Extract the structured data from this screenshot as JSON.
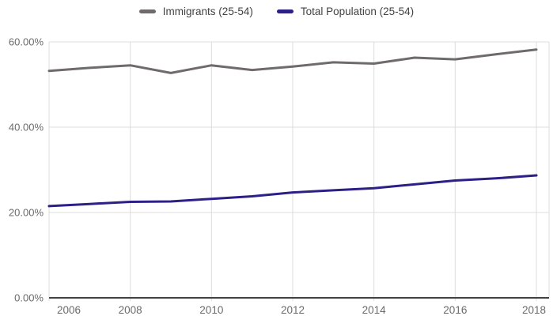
{
  "legend": {
    "items": [
      {
        "label": "Immigrants (25-54)"
      },
      {
        "label": "Total Population (25-54)"
      }
    ]
  },
  "chart_data": {
    "type": "line",
    "title": "",
    "xlabel": "",
    "ylabel": "",
    "x": [
      2006,
      2007,
      2008,
      2009,
      2010,
      2011,
      2012,
      2013,
      2014,
      2015,
      2016,
      2017,
      2018
    ],
    "series": [
      {
        "name": "Immigrants (25-54)",
        "color": "#6f6b6b",
        "values": [
          53.2,
          53.9,
          54.5,
          52.7,
          54.5,
          53.4,
          54.2,
          55.2,
          54.9,
          56.3,
          55.9,
          57.1,
          58.2
        ]
      },
      {
        "name": "Total Population (25-54)",
        "color": "#2c2086",
        "values": [
          21.5,
          22.0,
          22.5,
          22.6,
          23.2,
          23.8,
          24.7,
          25.2,
          25.7,
          26.6,
          27.5,
          28.0,
          28.7
        ]
      }
    ],
    "xlim": [
      2006,
      2018
    ],
    "ylim": [
      0,
      60
    ],
    "xticks": [
      {
        "value": 2006,
        "label": "2006"
      },
      {
        "value": 2008,
        "label": "2008"
      },
      {
        "value": 2010,
        "label": "2010"
      },
      {
        "value": 2012,
        "label": "2012"
      },
      {
        "value": 2014,
        "label": "2014"
      },
      {
        "value": 2016,
        "label": "2016"
      },
      {
        "value": 2018,
        "label": "2018"
      }
    ],
    "yticks": [
      {
        "value": 0,
        "label": "0.00%"
      },
      {
        "value": 20,
        "label": "20.00%"
      },
      {
        "value": 40,
        "label": "40.00%"
      },
      {
        "value": 60,
        "label": "60.00%"
      }
    ],
    "grid": true,
    "legend_position": "top",
    "colors": {
      "gridline": "#dcdcdc",
      "axis_line": "#424242",
      "tick_label": "#6b6b6b",
      "background": "#ffffff"
    }
  }
}
